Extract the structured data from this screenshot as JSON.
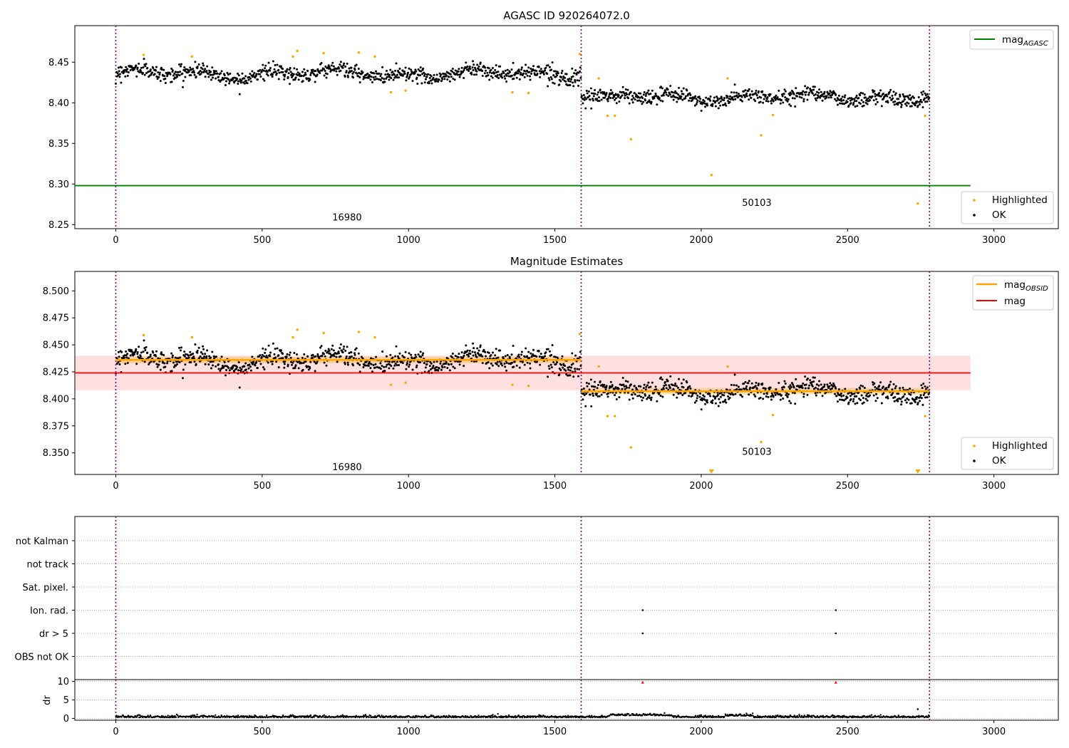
{
  "chart_data": [
    {
      "type": "scatter",
      "title": "AGASC ID 920264072.0",
      "ylim": [
        8.245,
        8.495
      ],
      "xlim": [
        -140,
        3220
      ],
      "xticks": [
        0,
        500,
        1000,
        1500,
        2000,
        2500,
        3000
      ],
      "yticks": [
        "8.25",
        "8.30",
        "8.35",
        "8.40",
        "8.45"
      ],
      "obsid_boundaries": [
        0,
        1590,
        2780
      ],
      "obsid_labels": [
        {
          "text": "16980",
          "x": 790,
          "y": 8.255
        },
        {
          "text": "50103",
          "x": 2190,
          "y": 8.273
        }
      ],
      "mag_agasc": {
        "value": 8.298,
        "x_end": 2920,
        "color": "#008000"
      },
      "segments": [
        {
          "x": [
            0,
            1590
          ],
          "mean": 8.436,
          "scatter": 0.006,
          "color": "#000000"
        },
        {
          "x": [
            1590,
            2780
          ],
          "mean": 8.407,
          "scatter": 0.006,
          "color": "#000000"
        }
      ],
      "highlighted": [
        {
          "x": 95,
          "y": 8.459
        },
        {
          "x": 260,
          "y": 8.457
        },
        {
          "x": 605,
          "y": 8.457
        },
        {
          "x": 620,
          "y": 8.464
        },
        {
          "x": 710,
          "y": 8.461
        },
        {
          "x": 830,
          "y": 8.462
        },
        {
          "x": 885,
          "y": 8.457
        },
        {
          "x": 940,
          "y": 8.413
        },
        {
          "x": 990,
          "y": 8.415
        },
        {
          "x": 1355,
          "y": 8.413
        },
        {
          "x": 1410,
          "y": 8.412
        },
        {
          "x": 1585,
          "y": 8.46
        },
        {
          "x": 1650,
          "y": 8.43
        },
        {
          "x": 1680,
          "y": 8.384
        },
        {
          "x": 1705,
          "y": 8.384
        },
        {
          "x": 1760,
          "y": 8.355
        },
        {
          "x": 2035,
          "y": 8.311
        },
        {
          "x": 2090,
          "y": 8.43
        },
        {
          "x": 2205,
          "y": 8.36
        },
        {
          "x": 2245,
          "y": 8.385
        },
        {
          "x": 2740,
          "y": 8.276
        },
        {
          "x": 2765,
          "y": 8.384
        }
      ],
      "legend": [
        {
          "label": "mag",
          "sub": "AGASC",
          "color": "#008000",
          "kind": "line"
        },
        {
          "label": "Highlighted",
          "color": "#ffa500",
          "kind": "dot"
        },
        {
          "label": "OK",
          "color": "#000000",
          "kind": "dot"
        }
      ]
    },
    {
      "type": "scatter",
      "title": "Magnitude Estimates",
      "ylim": [
        8.33,
        8.518
      ],
      "xlim": [
        -140,
        3220
      ],
      "xticks": [
        0,
        500,
        1000,
        1500,
        2000,
        2500,
        3000
      ],
      "yticks": [
        "8.350",
        "8.375",
        "8.400",
        "8.425",
        "8.450",
        "8.475",
        "8.500"
      ],
      "obsid_boundaries": [
        0,
        1590,
        2780
      ],
      "obsid_labels": [
        {
          "text": "16980",
          "x": 790,
          "y": 8.334
        },
        {
          "text": "50103",
          "x": 2190,
          "y": 8.348
        }
      ],
      "mag": {
        "value": 8.424,
        "band": [
          8.408,
          8.44
        ],
        "x_end": 2920,
        "color": "#ff0000"
      },
      "mag_obsid": [
        {
          "x": [
            0,
            1590
          ],
          "value": 8.436,
          "band": [
            8.433,
            8.439
          ]
        },
        {
          "x": [
            1590,
            2780
          ],
          "value": 8.407,
          "band": [
            8.404,
            8.41
          ]
        }
      ],
      "highlighted": [
        {
          "x": 95,
          "y": 8.459
        },
        {
          "x": 260,
          "y": 8.457
        },
        {
          "x": 605,
          "y": 8.457
        },
        {
          "x": 620,
          "y": 8.464
        },
        {
          "x": 710,
          "y": 8.461
        },
        {
          "x": 830,
          "y": 8.462
        },
        {
          "x": 885,
          "y": 8.457
        },
        {
          "x": 940,
          "y": 8.413
        },
        {
          "x": 990,
          "y": 8.415
        },
        {
          "x": 1355,
          "y": 8.413
        },
        {
          "x": 1410,
          "y": 8.412
        },
        {
          "x": 1585,
          "y": 8.46
        },
        {
          "x": 1650,
          "y": 8.43
        },
        {
          "x": 1680,
          "y": 8.384
        },
        {
          "x": 1705,
          "y": 8.384
        },
        {
          "x": 1760,
          "y": 8.355
        },
        {
          "x": 2090,
          "y": 8.43
        },
        {
          "x": 2205,
          "y": 8.36
        },
        {
          "x": 2245,
          "y": 8.385
        },
        {
          "x": 2765,
          "y": 8.384
        }
      ],
      "out_of_range_markers": [
        {
          "x": 2035
        },
        {
          "x": 2740
        }
      ],
      "legend_top": [
        {
          "label": "mag",
          "sub": "OBSID",
          "color": "#ffa500",
          "kind": "line"
        },
        {
          "label": "mag",
          "color": "#ff0000",
          "kind": "line"
        }
      ],
      "legend_bottom": [
        {
          "label": "Highlighted",
          "color": "#ffa500",
          "kind": "dot"
        },
        {
          "label": "OK",
          "color": "#000000",
          "kind": "dot"
        }
      ]
    },
    {
      "type": "scatter",
      "xlim": [
        -140,
        3220
      ],
      "obsid_boundaries": [
        0,
        1590,
        2780
      ],
      "flag_rows": [
        "not Kalman",
        "not track",
        "Sat. pixel.",
        "Ion. rad.",
        "dr > 5",
        "OBS not OK"
      ],
      "flag_points": [
        {
          "row": "Ion. rad.",
          "x": 1800
        },
        {
          "row": "Ion. rad.",
          "x": 2460
        },
        {
          "row": "dr > 5",
          "x": 1800
        },
        {
          "row": "dr > 5",
          "x": 2460
        }
      ]
    },
    {
      "type": "scatter",
      "ylabel": "dr",
      "ylim": [
        -0.5,
        10.5
      ],
      "xlim": [
        -140,
        3220
      ],
      "xticks": [
        0,
        500,
        1000,
        1500,
        2000,
        2500,
        3000
      ],
      "yticks": [
        "0",
        "5",
        "10"
      ],
      "obsid_boundaries": [
        0,
        1590,
        2780
      ],
      "dr_large": [
        {
          "x": 1800,
          "y": 9.8
        },
        {
          "x": 2460,
          "y": 9.8
        }
      ],
      "dr_outlier": {
        "x": 2740,
        "y": 2.5
      }
    }
  ]
}
